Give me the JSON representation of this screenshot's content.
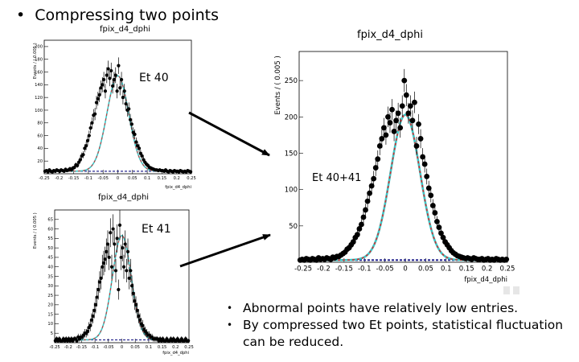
{
  "slide": {
    "title_bullet": "•",
    "title": "Compressing two points"
  },
  "colors": {
    "data_points": "#000000",
    "fit_curve": "#3cc8c8",
    "fit_dashed": "#d03030",
    "background_line": "#2a2a90",
    "arrow": "#000000"
  },
  "notes": [
    {
      "bullet": "•",
      "text": "Abnormal points have relatively low entries."
    },
    {
      "bullet": "•",
      "text": "By compressed two Et points, statistical fluctuation can be reduced."
    }
  ],
  "chart_data": [
    {
      "type": "scatter",
      "title": "fpix_d4_dphi",
      "annotation": "Et 40",
      "ylabel": "Events / ( 0.005 )",
      "xlabel": "fpix_d4_dphi",
      "xlim": [
        -0.25,
        0.25
      ],
      "ylim": [
        0,
        210
      ],
      "xticks": [
        "-0.25",
        "-0.2",
        "-0.15",
        "-0.1",
        "-0.05",
        "0",
        "0.05",
        "0.1",
        "0.15",
        "0.2",
        "0.25"
      ],
      "yticks": [
        "20",
        "40",
        "60",
        "80",
        "100",
        "120",
        "140",
        "160",
        "180",
        "200"
      ],
      "fit": {
        "mean": 0.0,
        "sigma": 0.037,
        "amplitude": 150,
        "background": 4
      },
      "x": [
        -0.2475,
        -0.2425,
        -0.2375,
        -0.2325,
        -0.2275,
        -0.2225,
        -0.2175,
        -0.2125,
        -0.2075,
        -0.2025,
        -0.1975,
        -0.1925,
        -0.1875,
        -0.1825,
        -0.1775,
        -0.1725,
        -0.1675,
        -0.1625,
        -0.1575,
        -0.1525,
        -0.1475,
        -0.1425,
        -0.1375,
        -0.1325,
        -0.1275,
        -0.1225,
        -0.1175,
        -0.1125,
        -0.1075,
        -0.1025,
        -0.0975,
        -0.0925,
        -0.0875,
        -0.0825,
        -0.0775,
        -0.0725,
        -0.0675,
        -0.0625,
        -0.0575,
        -0.0525,
        -0.0475,
        -0.0425,
        -0.0375,
        -0.0325,
        -0.0275,
        -0.0225,
        -0.0175,
        -0.0125,
        -0.0075,
        -0.0025,
        0.0025,
        0.0075,
        0.0125,
        0.0175,
        0.0225,
        0.0275,
        0.0325,
        0.0375,
        0.0425,
        0.0475,
        0.0525,
        0.0575,
        0.0625,
        0.0675,
        0.0725,
        0.0775,
        0.0825,
        0.0875,
        0.0925,
        0.0975,
        0.1025,
        0.1075,
        0.1125,
        0.1175,
        0.1225,
        0.1275,
        0.1325,
        0.1375,
        0.1425,
        0.1475,
        0.1525,
        0.1575,
        0.1625,
        0.1675,
        0.1725,
        0.1775,
        0.1825,
        0.1875,
        0.1925,
        0.1975,
        0.2025,
        0.2075,
        0.2125,
        0.2175,
        0.2225,
        0.2275,
        0.2325,
        0.2375,
        0.2425,
        0.2475
      ],
      "values": [
        4,
        5,
        3,
        6,
        4,
        3,
        5,
        4,
        6,
        5,
        4,
        6,
        5,
        4,
        7,
        5,
        6,
        8,
        6,
        9,
        10,
        14,
        13,
        18,
        22,
        28,
        30,
        40,
        44,
        52,
        60,
        72,
        80,
        92,
        94,
        112,
        118,
        124,
        135,
        140,
        148,
        130,
        155,
        165,
        150,
        162,
        138,
        148,
        155,
        130,
        170,
        135,
        148,
        120,
        130,
        110,
        100,
        102,
        85,
        78,
        65,
        62,
        50,
        44,
        40,
        32,
        28,
        22,
        18,
        15,
        13,
        10,
        9,
        8,
        7,
        6,
        6,
        5,
        6,
        5,
        5,
        4,
        6,
        4,
        3,
        5,
        4,
        3,
        5,
        4,
        4,
        3,
        5,
        4,
        3,
        4,
        3,
        5,
        4,
        3
      ]
    },
    {
      "type": "scatter",
      "title": "fpix_d4_dphi",
      "annotation": "Et 41",
      "ylabel": "Events / ( 0.005 )",
      "xlabel": "fpix_d4_dphi",
      "xlim": [
        -0.25,
        0.25
      ],
      "ylim": [
        0,
        70
      ],
      "xticks": [
        "-0.25",
        "-0.2",
        "-0.15",
        "-0.1",
        "-0.05",
        "0",
        "0.05",
        "0.1",
        "0.15",
        "0.2",
        "0.25"
      ],
      "yticks": [
        "5",
        "10",
        "15",
        "20",
        "25",
        "30",
        "35",
        "40",
        "45",
        "50",
        "55",
        "60",
        "65"
      ],
      "fit": {
        "mean": 0.0,
        "sigma": 0.035,
        "amplitude": 55,
        "background": 1.5
      },
      "x": [
        -0.2475,
        -0.2425,
        -0.2375,
        -0.2325,
        -0.2275,
        -0.2225,
        -0.2175,
        -0.2125,
        -0.2075,
        -0.2025,
        -0.1975,
        -0.1925,
        -0.1875,
        -0.1825,
        -0.1775,
        -0.1725,
        -0.1675,
        -0.1625,
        -0.1575,
        -0.1525,
        -0.1475,
        -0.1425,
        -0.1375,
        -0.1325,
        -0.1275,
        -0.1225,
        -0.1175,
        -0.1125,
        -0.1075,
        -0.1025,
        -0.0975,
        -0.0925,
        -0.0875,
        -0.0825,
        -0.0775,
        -0.0725,
        -0.0675,
        -0.0625,
        -0.0575,
        -0.0525,
        -0.0475,
        -0.0425,
        -0.0375,
        -0.0325,
        -0.0275,
        -0.0225,
        -0.0175,
        -0.0125,
        -0.0075,
        -0.0025,
        0.0025,
        0.0075,
        0.0125,
        0.0175,
        0.0225,
        0.0275,
        0.0325,
        0.0375,
        0.0425,
        0.0475,
        0.0525,
        0.0575,
        0.0625,
        0.0675,
        0.0725,
        0.0775,
        0.0825,
        0.0875,
        0.0925,
        0.0975,
        0.1025,
        0.1075,
        0.1125,
        0.1175,
        0.1225,
        0.1275,
        0.1325,
        0.1375,
        0.1425,
        0.1475,
        0.1525,
        0.1575,
        0.1625,
        0.1675,
        0.1725,
        0.1775,
        0.1825,
        0.1875,
        0.1925,
        0.1975,
        0.2025,
        0.2075,
        0.2125,
        0.2175,
        0.2225,
        0.2275,
        0.2325,
        0.2375,
        0.2425,
        0.2475
      ],
      "values": [
        1,
        2,
        1,
        2,
        1,
        1,
        2,
        1,
        2,
        1,
        2,
        1,
        2,
        1,
        2,
        2,
        1,
        3,
        2,
        3,
        3,
        4,
        5,
        5,
        6,
        8,
        9,
        12,
        14,
        17,
        20,
        24,
        28,
        32,
        34,
        40,
        42,
        44,
        48,
        52,
        45,
        58,
        40,
        60,
        52,
        38,
        55,
        28,
        62,
        45,
        50,
        40,
        52,
        38,
        48,
        34,
        38,
        30,
        26,
        22,
        20,
        17,
        14,
        12,
        10,
        9,
        7,
        6,
        5,
        4,
        4,
        3,
        3,
        2,
        2,
        2,
        2,
        1,
        2,
        1,
        2,
        1,
        1,
        2,
        1,
        1,
        2,
        1,
        2,
        1,
        1,
        2,
        1,
        1,
        2,
        1,
        1,
        2,
        1,
        1
      ]
    },
    {
      "type": "scatter",
      "title": "fpix_d4_dphi",
      "annotation": "Et 40+41",
      "ylabel": "Events / ( 0.005 )",
      "xlabel": "fpix_d4_dphi",
      "xlim": [
        -0.26,
        0.25
      ],
      "ylim": [
        0,
        290
      ],
      "xticks": [
        "-0.25",
        "-0.2",
        "-0.15",
        "-0.1",
        "-0.05",
        "0",
        "0.05",
        "0.1",
        "0.15",
        "0.2",
        "0.25"
      ],
      "xtick_values": [
        -0.25,
        -0.2,
        -0.15,
        -0.1,
        -0.05,
        0,
        0.05,
        0.1,
        0.15,
        0.2,
        0.25
      ],
      "xtick_labels": [
        "-0.25",
        "-0.2",
        "-0.15",
        "-0.1",
        "-0.05",
        "0",
        "0.05",
        "0.1",
        "0.15",
        "0.2",
        "0.25"
      ],
      "yticks": [
        "50",
        "100",
        "150",
        "200",
        "250"
      ],
      "fit": {
        "mean": 0.0,
        "sigma": 0.036,
        "amplitude": 200,
        "background": 3
      },
      "x": [
        -0.2575,
        -0.2525,
        -0.2475,
        -0.2425,
        -0.2375,
        -0.2325,
        -0.2275,
        -0.2225,
        -0.2175,
        -0.2125,
        -0.2075,
        -0.2025,
        -0.1975,
        -0.1925,
        -0.1875,
        -0.1825,
        -0.1775,
        -0.1725,
        -0.1675,
        -0.1625,
        -0.1575,
        -0.1525,
        -0.1475,
        -0.1425,
        -0.1375,
        -0.1325,
        -0.1275,
        -0.1225,
        -0.1175,
        -0.1125,
        -0.1075,
        -0.1025,
        -0.0975,
        -0.0925,
        -0.0875,
        -0.0825,
        -0.0775,
        -0.0725,
        -0.0675,
        -0.0625,
        -0.0575,
        -0.0525,
        -0.0475,
        -0.0425,
        -0.0375,
        -0.0325,
        -0.0275,
        -0.0225,
        -0.0175,
        -0.0125,
        -0.0075,
        -0.0025,
        0.0025,
        0.0075,
        0.0125,
        0.0175,
        0.0225,
        0.0275,
        0.0325,
        0.0375,
        0.0425,
        0.0475,
        0.0525,
        0.0575,
        0.0625,
        0.0675,
        0.0725,
        0.0775,
        0.0825,
        0.0875,
        0.0925,
        0.0975,
        0.1025,
        0.1075,
        0.1125,
        0.1175,
        0.1225,
        0.1275,
        0.1325,
        0.1375,
        0.1425,
        0.1475,
        0.1525,
        0.1575,
        0.1625,
        0.1675,
        0.1725,
        0.1775,
        0.1825,
        0.1875,
        0.1925,
        0.1975,
        0.2025,
        0.2075,
        0.2125,
        0.2175,
        0.2225,
        0.2275,
        0.2325,
        0.2375,
        0.2425,
        0.2475
      ],
      "values": [
        3,
        4,
        3,
        5,
        4,
        3,
        5,
        4,
        3,
        6,
        4,
        5,
        4,
        6,
        5,
        4,
        7,
        6,
        8,
        8,
        10,
        12,
        14,
        18,
        20,
        24,
        28,
        34,
        38,
        46,
        52,
        62,
        72,
        84,
        95,
        105,
        115,
        130,
        142,
        160,
        170,
        185,
        175,
        200,
        192,
        210,
        180,
        195,
        205,
        185,
        215,
        250,
        230,
        205,
        215,
        195,
        220,
        160,
        190,
        170,
        145,
        135,
        118,
        102,
        92,
        78,
        68,
        56,
        48,
        40,
        34,
        28,
        24,
        20,
        16,
        13,
        11,
        9,
        8,
        7,
        6,
        5,
        6,
        5,
        4,
        6,
        5,
        4,
        4,
        5,
        3,
        4,
        5,
        3,
        4,
        3,
        5,
        4,
        3,
        4,
        3,
        4
      ]
    }
  ]
}
